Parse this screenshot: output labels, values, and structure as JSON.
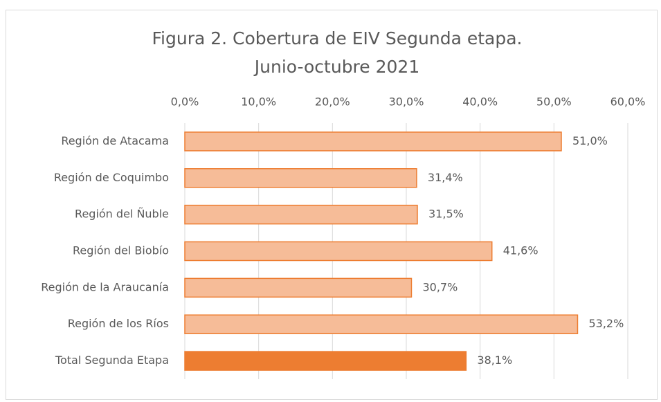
{
  "chart_data": {
    "type": "barh",
    "title_lines": [
      "Figura 2. Cobertura de EIV Segunda etapa.",
      "Junio-octubre 2021"
    ],
    "categories": [
      "Región de Atacama",
      "Región de Coquimbo",
      "Región del Ñuble",
      "Región del Biobío",
      "Región de la Araucanía",
      "Región de los Ríos",
      "Total Segunda Etapa"
    ],
    "values": [
      51.0,
      31.4,
      31.5,
      41.6,
      30.7,
      53.2,
      38.1
    ],
    "value_labels": [
      "51,0%",
      "31,4%",
      "31,5%",
      "41,6%",
      "30,7%",
      "53,2%",
      "38,1%"
    ],
    "colors": [
      "#f6bc98",
      "#f6bc98",
      "#f6bc98",
      "#f6bc98",
      "#f6bc98",
      "#f6bc98",
      "#ed7d31"
    ],
    "edge_color": "#ed7d31",
    "xlim": [
      0,
      60
    ],
    "xticks": [
      {
        "value": 0,
        "label": "0,0%"
      },
      {
        "value": 10,
        "label": "10,0%"
      },
      {
        "value": 20,
        "label": "20,0%"
      },
      {
        "value": 30,
        "label": "30,0%"
      },
      {
        "value": 40,
        "label": "40,0%"
      },
      {
        "value": 50,
        "label": "50,0%"
      },
      {
        "value": 60,
        "label": "60,0%"
      }
    ],
    "grid": true
  }
}
